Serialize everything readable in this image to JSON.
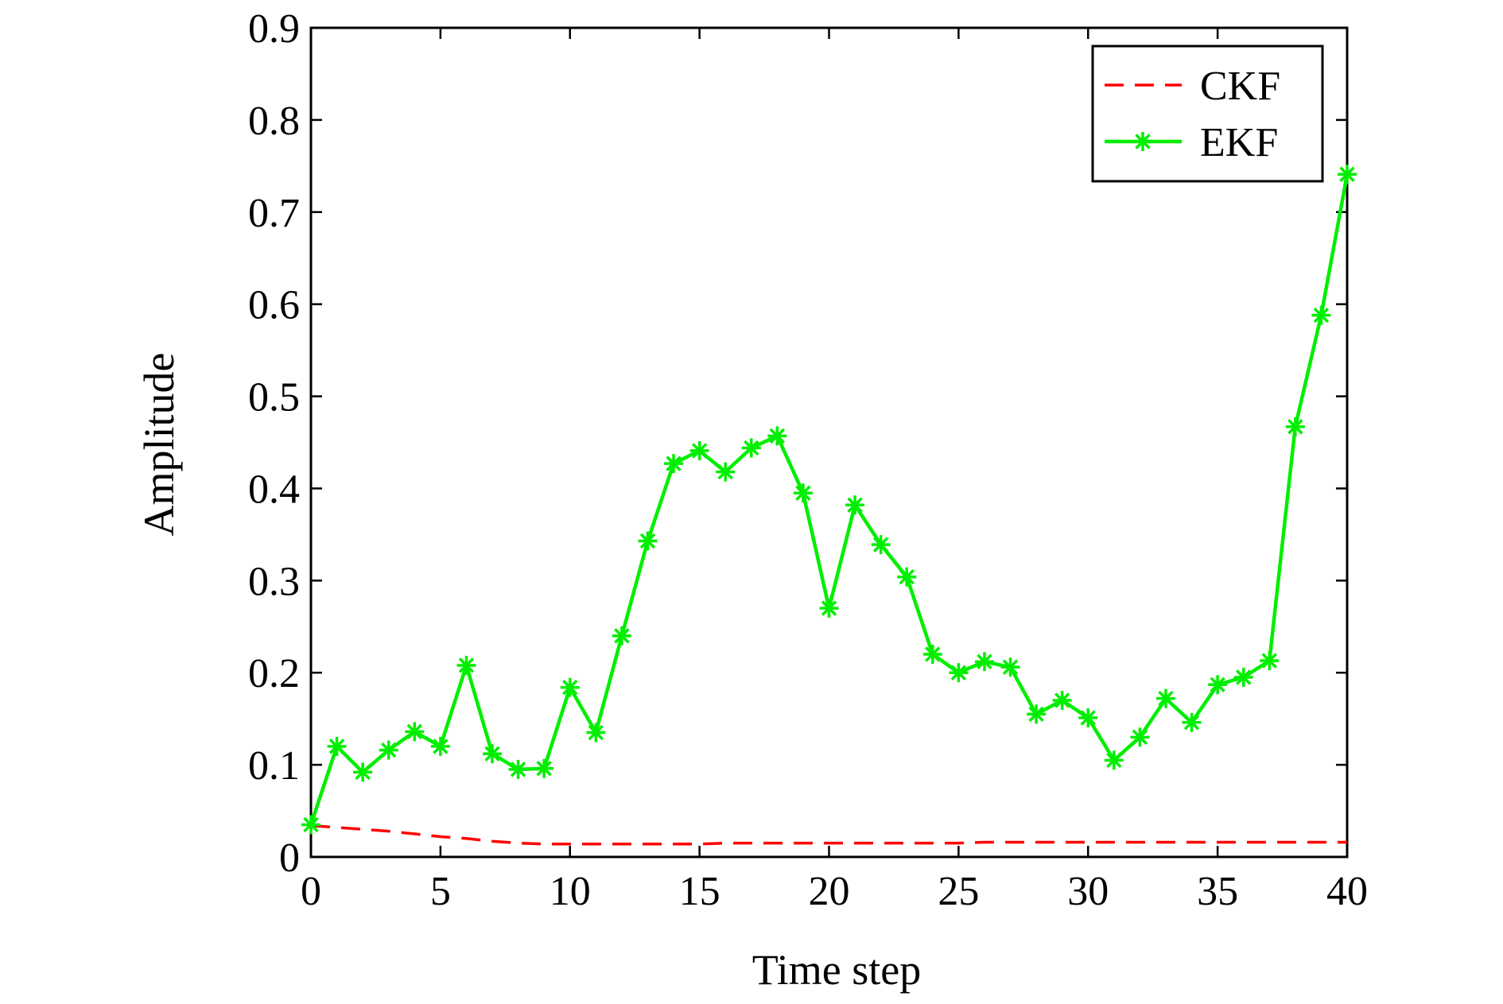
{
  "chart_data": {
    "type": "line",
    "title": "",
    "xlabel": "Time step",
    "ylabel": "Amplitude",
    "xlim": [
      0,
      40
    ],
    "ylim": [
      0,
      0.9
    ],
    "xticks": [
      0,
      5,
      10,
      15,
      20,
      25,
      30,
      35,
      40
    ],
    "xtick_labels": [
      "0",
      "5",
      "10",
      "15",
      "20",
      "25",
      "30",
      "35",
      "40"
    ],
    "yticks": [
      0,
      0.1,
      0.2,
      0.3,
      0.4,
      0.5,
      0.6,
      0.7,
      0.8,
      0.9
    ],
    "ytick_labels": [
      "0",
      "0.1",
      "0.2",
      "0.3",
      "0.4",
      "0.5",
      "0.6",
      "0.7",
      "0.8",
      "0.9"
    ],
    "grid": false,
    "legend_position": "top-right",
    "series": [
      {
        "name": "CKF",
        "color": "#ff0000",
        "style": "dashed",
        "marker": "none",
        "x": [
          0,
          1,
          2,
          3,
          4,
          5,
          6,
          7,
          8,
          9,
          10,
          11,
          12,
          13,
          14,
          15,
          16,
          17,
          18,
          19,
          20,
          21,
          22,
          23,
          24,
          25,
          26,
          27,
          28,
          29,
          30,
          31,
          32,
          33,
          34,
          35,
          36,
          37,
          38,
          39,
          40
        ],
        "values": [
          0.034,
          0.032,
          0.03,
          0.028,
          0.025,
          0.022,
          0.02,
          0.017,
          0.015,
          0.014,
          0.014,
          0.014,
          0.014,
          0.014,
          0.014,
          0.014,
          0.015,
          0.015,
          0.015,
          0.015,
          0.015,
          0.015,
          0.015,
          0.015,
          0.015,
          0.015,
          0.016,
          0.016,
          0.016,
          0.016,
          0.016,
          0.016,
          0.016,
          0.016,
          0.016,
          0.016,
          0.016,
          0.016,
          0.016,
          0.016,
          0.016
        ]
      },
      {
        "name": "EKF",
        "color": "#00ee00",
        "style": "solid",
        "marker": "asterisk",
        "x": [
          0,
          1,
          2,
          3,
          4,
          5,
          6,
          7,
          8,
          9,
          10,
          11,
          12,
          13,
          14,
          15,
          16,
          17,
          18,
          19,
          20,
          21,
          22,
          23,
          24,
          25,
          26,
          27,
          28,
          29,
          30,
          31,
          32,
          33,
          34,
          35,
          36,
          37,
          38,
          39,
          40
        ],
        "values": [
          0.035,
          0.12,
          0.092,
          0.116,
          0.136,
          0.12,
          0.208,
          0.112,
          0.095,
          0.096,
          0.184,
          0.135,
          0.24,
          0.343,
          0.427,
          0.441,
          0.418,
          0.444,
          0.457,
          0.395,
          0.27,
          0.382,
          0.339,
          0.304,
          0.22,
          0.2,
          0.212,
          0.206,
          0.155,
          0.17,
          0.151,
          0.105,
          0.13,
          0.172,
          0.146,
          0.187,
          0.195,
          0.213,
          0.467,
          0.588,
          0.741
        ]
      }
    ]
  }
}
